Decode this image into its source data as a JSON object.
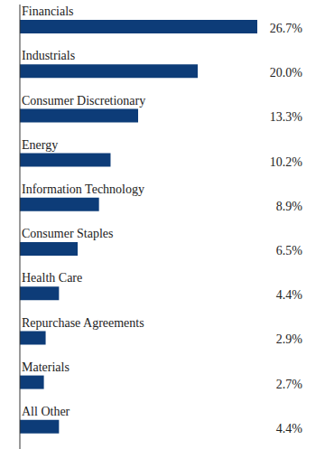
{
  "chart_data": {
    "type": "bar",
    "orientation": "horizontal",
    "categories": [
      "Financials",
      "Industrials",
      "Consumer Discretionary",
      "Energy",
      "Information Technology",
      "Consumer Staples",
      "Health Care",
      "Repurchase Agreements",
      "Materials",
      "All Other"
    ],
    "values": [
      26.7,
      20.0,
      13.3,
      10.2,
      8.9,
      6.5,
      4.4,
      2.9,
      2.7,
      4.4
    ],
    "value_labels": [
      "26.7%",
      "20.0%",
      "13.3%",
      "10.2%",
      "8.9%",
      "6.5%",
      "4.4%",
      "2.9%",
      "2.7%",
      "4.4%"
    ],
    "color": "#0d3c78",
    "data_labels": true,
    "tick_labels": "y",
    "grid": false
  }
}
